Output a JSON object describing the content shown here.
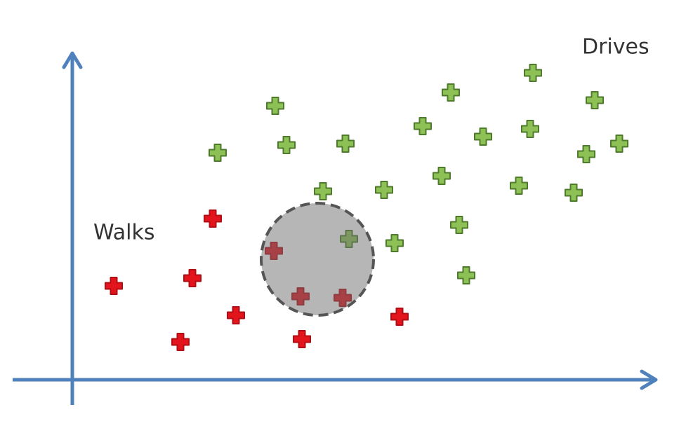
{
  "labels": {
    "walks": "Walks",
    "drives": "Drives"
  }
}
